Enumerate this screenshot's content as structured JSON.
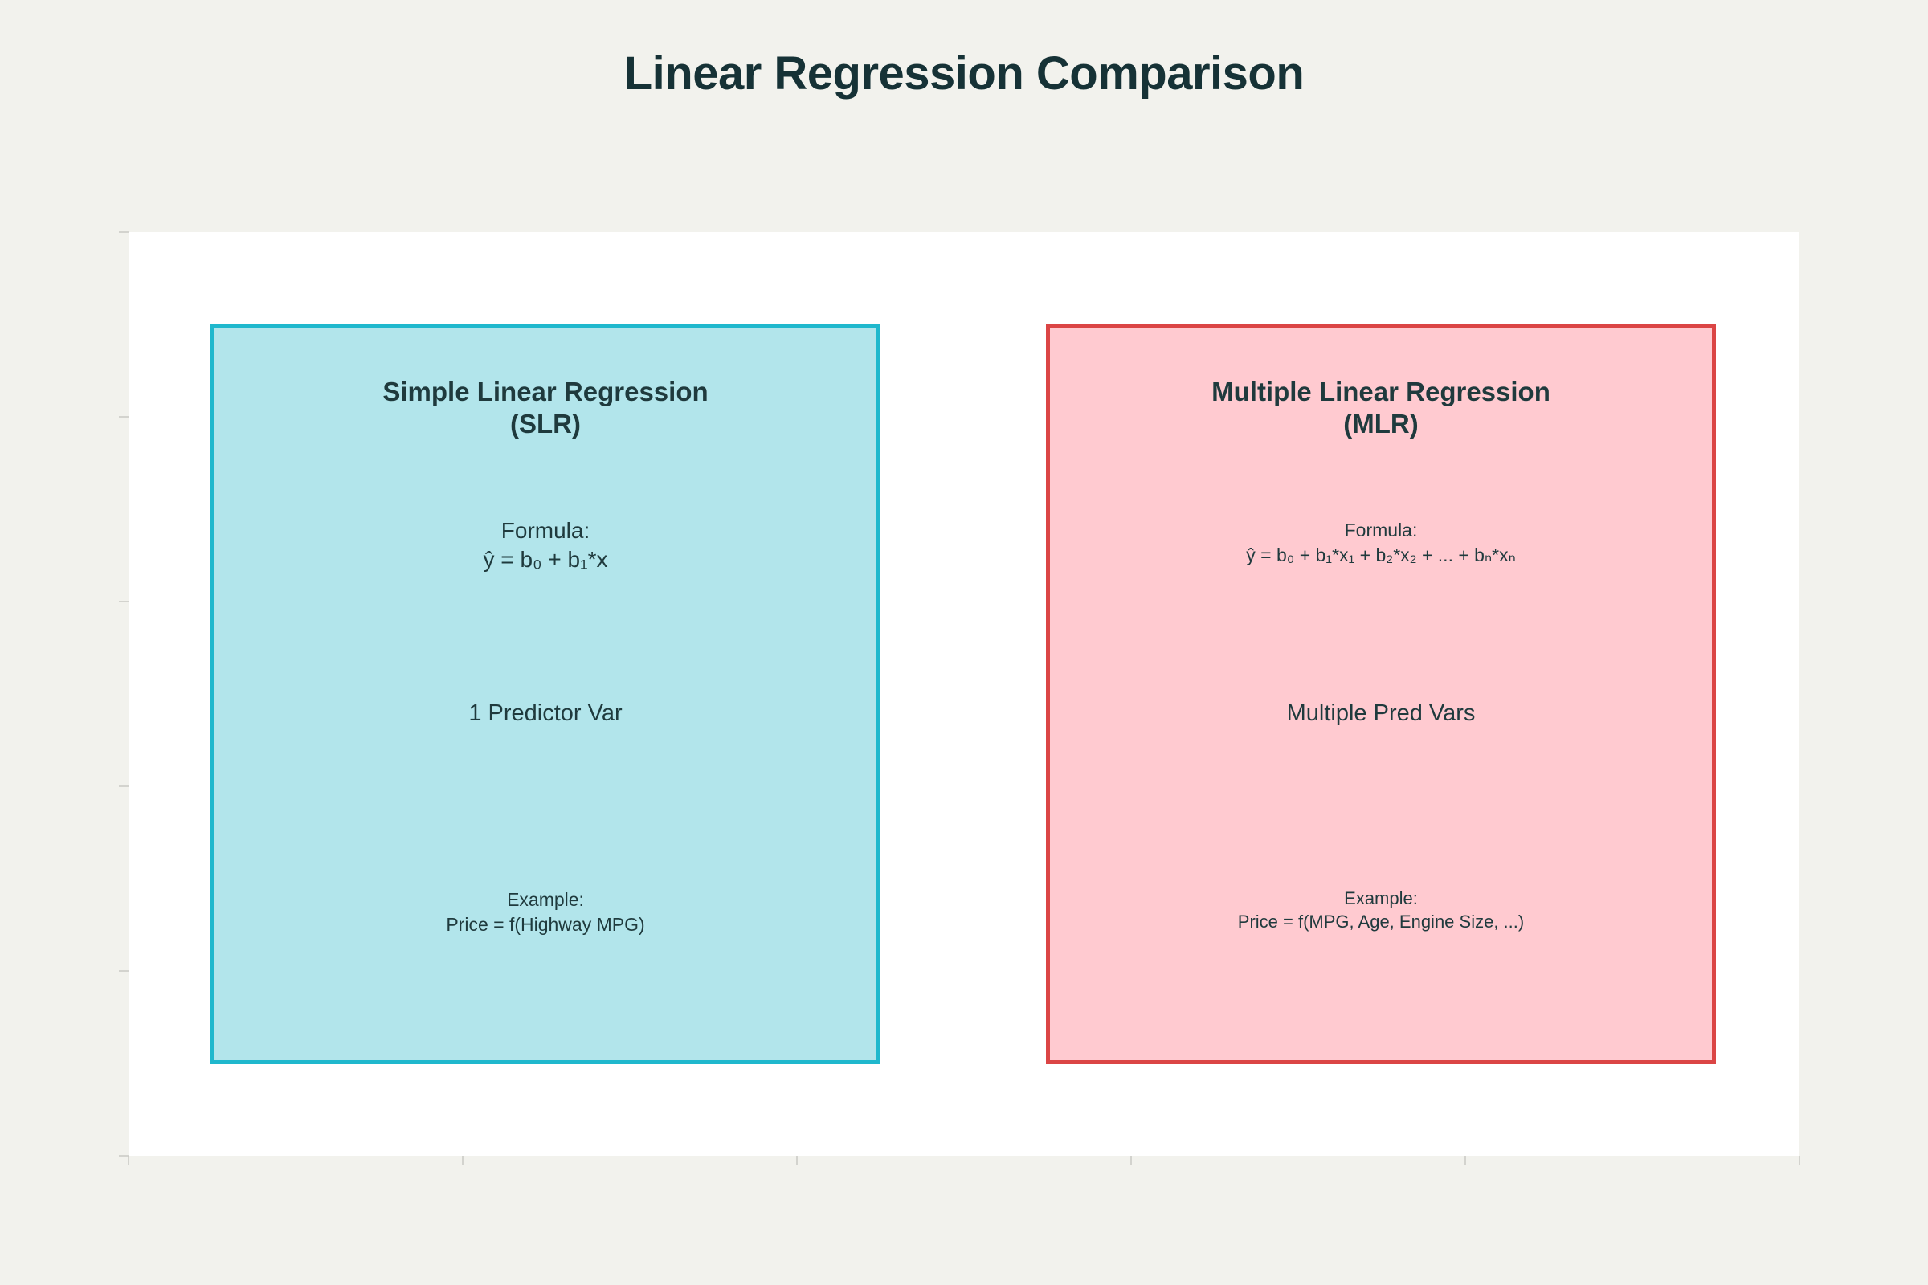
{
  "title": "Linear Regression Comparison",
  "colors": {
    "background": "#f2f2ed",
    "plot_background": "#ffffff",
    "slr_fill": "#b2e5eb",
    "slr_border": "#1fb8cd",
    "mlr_fill": "#ffcad0",
    "mlr_border": "#db4545",
    "text": "#1f3a3d"
  },
  "slr": {
    "heading_line1": "Simple Linear Regression",
    "heading_line2": "(SLR)",
    "formula_label": "Formula:",
    "formula": "ŷ = b₀ + b₁*x",
    "predictors": "1 Predictor Var",
    "example_label": "Example:",
    "example": "Price = f(Highway MPG)"
  },
  "mlr": {
    "heading_line1": "Multiple Linear Regression",
    "heading_line2": "(MLR)",
    "formula_label": "Formula:",
    "formula": "ŷ = b₀ + b₁*x₁ + b₂*x₂ + ... + bₙ*xₙ",
    "predictors": "Multiple Pred Vars",
    "example_label": "Example:",
    "example": "Price = f(MPG, Age, Engine Size, ...)"
  }
}
